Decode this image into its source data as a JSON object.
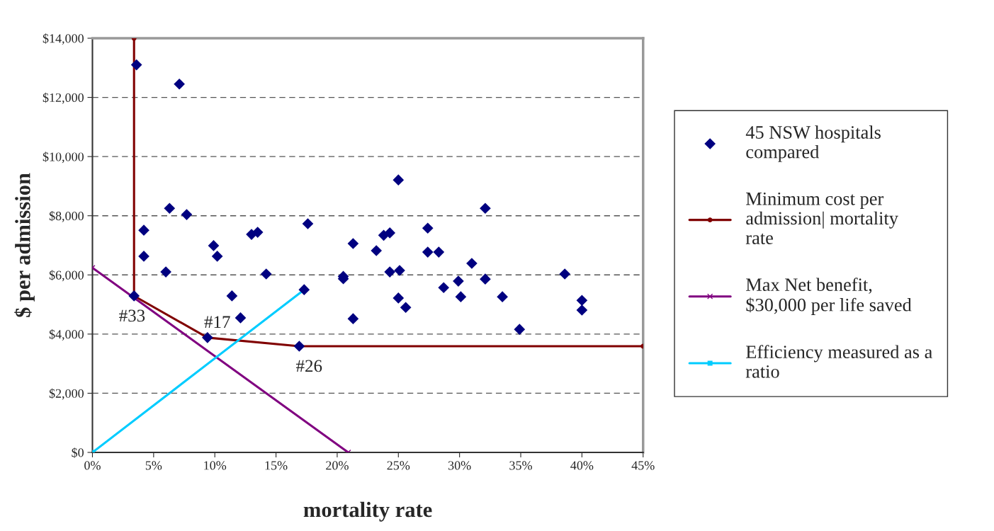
{
  "chart_data": {
    "type": "scatter",
    "xlabel": "mortality rate",
    "ylabel": "$ per admission",
    "xlim": [
      0,
      45
    ],
    "ylim": [
      0,
      14000
    ],
    "xticks": [
      {
        "value": 0,
        "label": "0%"
      },
      {
        "value": 5,
        "label": "5%"
      },
      {
        "value": 10,
        "label": "10%"
      },
      {
        "value": 15,
        "label": "15%"
      },
      {
        "value": 20,
        "label": "20%"
      },
      {
        "value": 25,
        "label": "25%"
      },
      {
        "value": 30,
        "label": "30%"
      },
      {
        "value": 35,
        "label": "35%"
      },
      {
        "value": 40,
        "label": "40%"
      },
      {
        "value": 45,
        "label": "45%"
      }
    ],
    "yticks": [
      {
        "value": 0,
        "label": "$0"
      },
      {
        "value": 2000,
        "label": "$2,000"
      },
      {
        "value": 4000,
        "label": "$4,000"
      },
      {
        "value": 6000,
        "label": "$6,000"
      },
      {
        "value": 8000,
        "label": "$8,000"
      },
      {
        "value": 10000,
        "label": "$10,000"
      },
      {
        "value": 12000,
        "label": "$12,000"
      },
      {
        "value": 14000,
        "label": "$14,000"
      }
    ],
    "grid": "y",
    "legend": "right",
    "series": [
      {
        "name": "45 NSW hospitals\ncompared",
        "marker": "diamond",
        "color": "#000080",
        "x": [
          3.6,
          7.1,
          6.3,
          7.7,
          4.2,
          9.9,
          13.0,
          13.5,
          17.6,
          4.2,
          10.2,
          6.0,
          14.2,
          11.4,
          12.1,
          17.3,
          3.4,
          9.4,
          16.9,
          25.0,
          32.1,
          27.4,
          21.3,
          23.2,
          23.8,
          24.3,
          27.4,
          28.3,
          31.0,
          20.5,
          20.5,
          24.3,
          25.1,
          32.1,
          38.6,
          29.9,
          28.7,
          25.0,
          30.1,
          33.5,
          40.0,
          40.0,
          25.6,
          21.3,
          34.9
        ],
        "values": [
          13100,
          12450,
          8250,
          8040,
          7510,
          6990,
          7370,
          7440,
          7730,
          6630,
          6630,
          6100,
          6030,
          5290,
          4550,
          5500,
          5290,
          3880,
          3590,
          9210,
          8250,
          7580,
          7060,
          6820,
          7340,
          7420,
          6770,
          6770,
          6390,
          5950,
          5870,
          6100,
          6150,
          5860,
          6030,
          5790,
          5570,
          5220,
          5260,
          5260,
          5140,
          4810,
          4900,
          4520,
          4160
        ]
      },
      {
        "name": "Minimum cost per\nadmission| mortality\nrate",
        "type": "line",
        "marker": "circle",
        "color": "#800000",
        "x": [
          3.4,
          3.4,
          9.4,
          16.9,
          45
        ],
        "values": [
          14000,
          5290,
          3880,
          3590,
          3590
        ]
      },
      {
        "name": "Max Net benefit,\n$30,000 per life saved",
        "type": "line",
        "marker": "cross",
        "color": "#800080",
        "x": [
          0,
          20.9
        ],
        "values": [
          6240,
          0
        ]
      },
      {
        "name": "Efficiency measured as a\nratio",
        "type": "line",
        "marker": "square",
        "color": "#00ccff",
        "x": [
          0,
          17.3
        ],
        "values": [
          0,
          5500
        ]
      }
    ],
    "annotations": [
      {
        "text": "#33",
        "x": 3.4,
        "y": 5290
      },
      {
        "text": "#17",
        "x": 9.4,
        "y": 3880
      },
      {
        "text": "#26",
        "x": 16.9,
        "y": 3590
      }
    ]
  }
}
